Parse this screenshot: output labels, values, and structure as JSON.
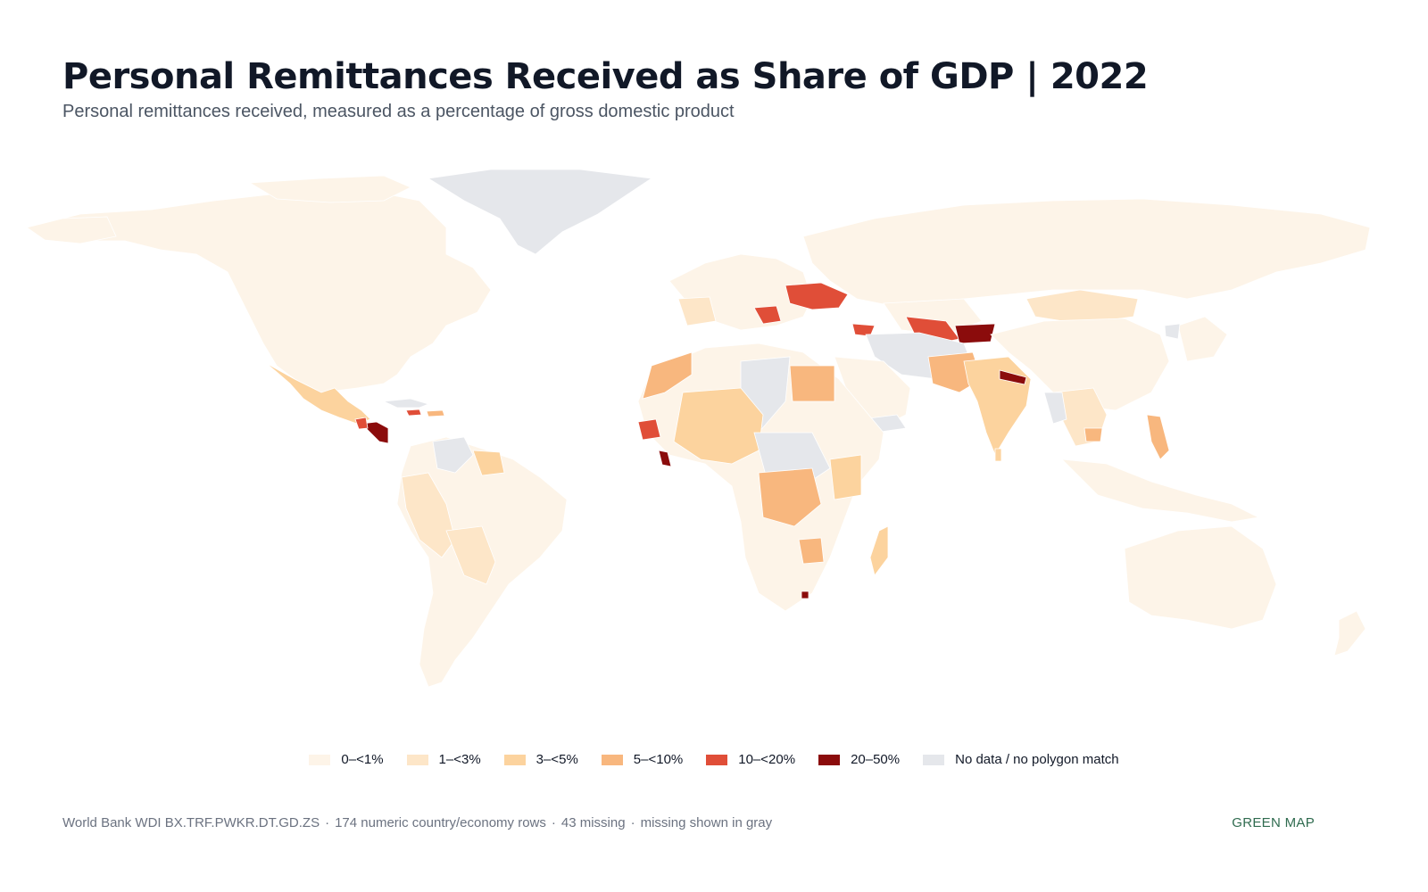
{
  "header": {
    "title": "Personal Remittances Received as Share of GDP | 2022",
    "subtitle": "Personal remittances received, measured as a percentage of gross domestic product"
  },
  "legend": {
    "items": [
      {
        "label": "0–<1%",
        "color": "#fdf4e8"
      },
      {
        "label": "1–<3%",
        "color": "#fde6c8"
      },
      {
        "label": "3–<5%",
        "color": "#fcd39e"
      },
      {
        "label": "5–<10%",
        "color": "#f8b77e"
      },
      {
        "label": "10–<20%",
        "color": "#e04e38"
      },
      {
        "label": "20–50%",
        "color": "#8b0c0c"
      },
      {
        "label": "No data / no polygon match",
        "color": "#e5e7eb"
      }
    ]
  },
  "footer": {
    "source": "World Bank WDI BX.TRF.PWKR.DT.GD.ZS",
    "rows": "174 numeric country/economy rows",
    "missing": "43 missing",
    "note": "missing shown in gray",
    "separator": "·"
  },
  "brand": "GREEN MAP"
}
